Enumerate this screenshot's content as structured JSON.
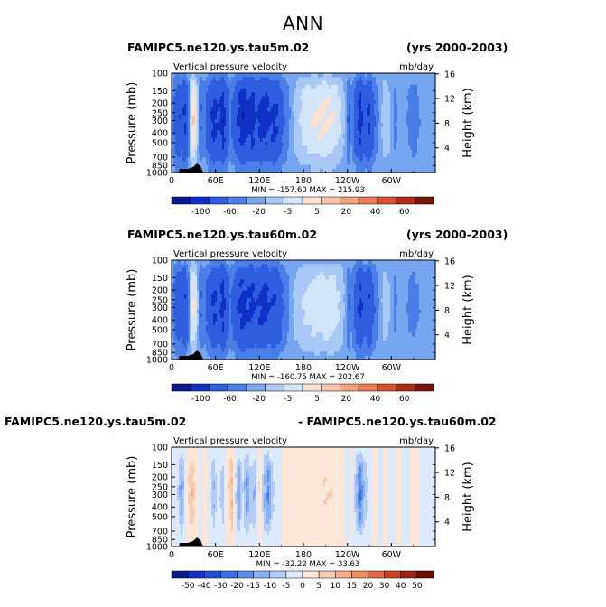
{
  "page": {
    "title": "ANN"
  },
  "panels": [
    {
      "left_label": "FAMIPC5.ne120.ys.tau5m.02",
      "right_label": "(yrs 2000-2003)",
      "min_max": "MIN = -157.60   MAX = 215.93"
    },
    {
      "left_label": "FAMIPC5.ne120.ys.tau60m.02",
      "right_label": "(yrs 2000-2003)",
      "min_max": "MIN = -160.75   MAX = 202.67"
    },
    {
      "left_label": "FAMIPC5.ne120.ys.tau5m.02",
      "right_label": "- FAMIPC5.ne120.ys.tau60m.02",
      "min_max": "MIN = -32.22   MAX = 33.63"
    }
  ],
  "chart_data": [
    {
      "type": "heatmap",
      "title": "FAMIPC5.ne120.ys.tau5m.02",
      "subtitle": "Vertical pressure velocity",
      "units": "mb/day",
      "period": "(yrs 2000-2003)",
      "xlabel": "",
      "ylabel": "Pressure (mb)",
      "y2label": "Height (km)",
      "x_ticks": [
        "0",
        "60E",
        "120E",
        "180",
        "120W",
        "60W"
      ],
      "x_tick_values": [
        0,
        60,
        120,
        180,
        240,
        300
      ],
      "xlim": [
        0,
        360
      ],
      "y_ticks": [
        100,
        150,
        200,
        250,
        300,
        400,
        500,
        700,
        850,
        1000
      ],
      "ylim": [
        1000,
        100
      ],
      "y_scale": "log",
      "y2_ticks": [
        4,
        8,
        12,
        16
      ],
      "min": -157.6,
      "max": 215.93,
      "colorbar_levels": [
        -100,
        -60,
        -20,
        -5,
        5,
        20,
        40,
        60
      ],
      "colorbar_tick_labels": [
        "-100",
        "-60",
        "-20",
        "-5",
        "5",
        "20",
        "40",
        "60"
      ],
      "colors": [
        "#0a1a8c",
        "#1030c8",
        "#2e5ee0",
        "#4a7fe8",
        "#78a5f0",
        "#a8c8f6",
        "#d2e4fa",
        "#fbe2d2",
        "#f8c4a8",
        "#f4a07a",
        "#ec7a54",
        "#d8502e",
        "#b02a14",
        "#7a1208"
      ],
      "profile": [
        {
          "lon": 0,
          "v": 0
        },
        {
          "lon": 5,
          "v": -35
        },
        {
          "lon": 10,
          "v": -60
        },
        {
          "lon": 14,
          "v": -40
        },
        {
          "lon": 18,
          "v": -70
        },
        {
          "lon": 22,
          "v": -30
        },
        {
          "lon": 26,
          "v": 20
        },
        {
          "lon": 29,
          "v": 70
        },
        {
          "lon": 33,
          "v": 40
        },
        {
          "lon": 37,
          "v": -5
        },
        {
          "lon": 41,
          "v": -20
        },
        {
          "lon": 45,
          "v": -10
        },
        {
          "lon": 50,
          "v": -40
        },
        {
          "lon": 58,
          "v": -80
        },
        {
          "lon": 64,
          "v": -55
        },
        {
          "lon": 70,
          "v": -90
        },
        {
          "lon": 75,
          "v": -50
        },
        {
          "lon": 80,
          "v": -15
        },
        {
          "lon": 86,
          "v": -35
        },
        {
          "lon": 92,
          "v": -70
        },
        {
          "lon": 98,
          "v": -95
        },
        {
          "lon": 104,
          "v": -70
        },
        {
          "lon": 110,
          "v": -85
        },
        {
          "lon": 116,
          "v": -55
        },
        {
          "lon": 122,
          "v": -80
        },
        {
          "lon": 128,
          "v": -90
        },
        {
          "lon": 134,
          "v": -60
        },
        {
          "lon": 140,
          "v": -75
        },
        {
          "lon": 146,
          "v": -55
        },
        {
          "lon": 152,
          "v": -25
        },
        {
          "lon": 158,
          "v": -12
        },
        {
          "lon": 165,
          "v": 2
        },
        {
          "lon": 172,
          "v": 15
        },
        {
          "lon": 180,
          "v": 30
        },
        {
          "lon": 190,
          "v": 38
        },
        {
          "lon": 200,
          "v": 45
        },
        {
          "lon": 210,
          "v": 45
        },
        {
          "lon": 220,
          "v": 42
        },
        {
          "lon": 228,
          "v": 28
        },
        {
          "lon": 234,
          "v": 12
        },
        {
          "lon": 238,
          "v": -2
        },
        {
          "lon": 242,
          "v": -30
        },
        {
          "lon": 246,
          "v": -5
        },
        {
          "lon": 252,
          "v": -45
        },
        {
          "lon": 258,
          "v": -80
        },
        {
          "lon": 264,
          "v": -40
        },
        {
          "lon": 270,
          "v": -65
        },
        {
          "lon": 276,
          "v": -25
        },
        {
          "lon": 282,
          "v": -6
        },
        {
          "lon": 290,
          "v": 12
        },
        {
          "lon": 298,
          "v": 8
        },
        {
          "lon": 305,
          "v": -10
        },
        {
          "lon": 312,
          "v": 4
        },
        {
          "lon": 320,
          "v": -4
        },
        {
          "lon": 330,
          "v": -12
        },
        {
          "lon": 340,
          "v": -4
        },
        {
          "lon": 350,
          "v": 3
        },
        {
          "lon": 360,
          "v": 0
        }
      ]
    },
    {
      "type": "heatmap",
      "title": "FAMIPC5.ne120.ys.tau60m.02",
      "subtitle": "Vertical pressure velocity",
      "units": "mb/day",
      "period": "(yrs 2000-2003)",
      "xlabel": "",
      "ylabel": "Pressure (mb)",
      "y2label": "Height (km)",
      "x_ticks": [
        "0",
        "60E",
        "120E",
        "180",
        "120W",
        "60W"
      ],
      "x_tick_values": [
        0,
        60,
        120,
        180,
        240,
        300
      ],
      "xlim": [
        0,
        360
      ],
      "y_ticks": [
        100,
        150,
        200,
        250,
        300,
        400,
        500,
        700,
        850,
        1000
      ],
      "ylim": [
        1000,
        100
      ],
      "y_scale": "log",
      "y2_ticks": [
        4,
        8,
        12,
        16
      ],
      "min": -160.75,
      "max": 202.67,
      "colorbar_levels": [
        -100,
        -60,
        -20,
        -5,
        5,
        20,
        40,
        60
      ],
      "colorbar_tick_labels": [
        "-100",
        "-60",
        "-20",
        "-5",
        "5",
        "20",
        "40",
        "60"
      ],
      "colors": [
        "#0a1a8c",
        "#1030c8",
        "#2e5ee0",
        "#4a7fe8",
        "#78a5f0",
        "#a8c8f6",
        "#d2e4fa",
        "#fbe2d2",
        "#f8c4a8",
        "#f4a07a",
        "#ec7a54",
        "#d8502e",
        "#b02a14",
        "#7a1208"
      ],
      "profile": [
        {
          "lon": 0,
          "v": 0
        },
        {
          "lon": 5,
          "v": -30
        },
        {
          "lon": 10,
          "v": -55
        },
        {
          "lon": 14,
          "v": -35
        },
        {
          "lon": 18,
          "v": -60
        },
        {
          "lon": 22,
          "v": -25
        },
        {
          "lon": 26,
          "v": 15
        },
        {
          "lon": 29,
          "v": 55
        },
        {
          "lon": 33,
          "v": 30
        },
        {
          "lon": 37,
          "v": -5
        },
        {
          "lon": 41,
          "v": -20
        },
        {
          "lon": 45,
          "v": -12
        },
        {
          "lon": 50,
          "v": -35
        },
        {
          "lon": 58,
          "v": -70
        },
        {
          "lon": 64,
          "v": -50
        },
        {
          "lon": 70,
          "v": -80
        },
        {
          "lon": 75,
          "v": -45
        },
        {
          "lon": 80,
          "v": -18
        },
        {
          "lon": 86,
          "v": -35
        },
        {
          "lon": 92,
          "v": -65
        },
        {
          "lon": 98,
          "v": -80
        },
        {
          "lon": 104,
          "v": -60
        },
        {
          "lon": 110,
          "v": -75
        },
        {
          "lon": 116,
          "v": -50
        },
        {
          "lon": 122,
          "v": -70
        },
        {
          "lon": 128,
          "v": -78
        },
        {
          "lon": 134,
          "v": -55
        },
        {
          "lon": 140,
          "v": -60
        },
        {
          "lon": 146,
          "v": -45
        },
        {
          "lon": 152,
          "v": -22
        },
        {
          "lon": 158,
          "v": -10
        },
        {
          "lon": 165,
          "v": 3
        },
        {
          "lon": 172,
          "v": 12
        },
        {
          "lon": 180,
          "v": 22
        },
        {
          "lon": 190,
          "v": 28
        },
        {
          "lon": 200,
          "v": 32
        },
        {
          "lon": 210,
          "v": 34
        },
        {
          "lon": 220,
          "v": 32
        },
        {
          "lon": 228,
          "v": 22
        },
        {
          "lon": 234,
          "v": 10
        },
        {
          "lon": 238,
          "v": -2
        },
        {
          "lon": 242,
          "v": -25
        },
        {
          "lon": 246,
          "v": -5
        },
        {
          "lon": 252,
          "v": -40
        },
        {
          "lon": 258,
          "v": -70
        },
        {
          "lon": 264,
          "v": -35
        },
        {
          "lon": 270,
          "v": -55
        },
        {
          "lon": 276,
          "v": -22
        },
        {
          "lon": 282,
          "v": -6
        },
        {
          "lon": 290,
          "v": 10
        },
        {
          "lon": 298,
          "v": 6
        },
        {
          "lon": 305,
          "v": -8
        },
        {
          "lon": 312,
          "v": 3
        },
        {
          "lon": 320,
          "v": -4
        },
        {
          "lon": 330,
          "v": -10
        },
        {
          "lon": 340,
          "v": -4
        },
        {
          "lon": 350,
          "v": 2
        },
        {
          "lon": 360,
          "v": 0
        }
      ]
    },
    {
      "type": "heatmap",
      "title": "FAMIPC5.ne120.ys.tau5m.02 - FAMIPC5.ne120.ys.tau60m.02",
      "subtitle": "Vertical pressure velocity",
      "units": "mb/day",
      "xlabel": "",
      "ylabel": "Pressure (mb)",
      "y2label": "Height (km)",
      "x_ticks": [
        "0",
        "60E",
        "120E",
        "180",
        "120W",
        "60W"
      ],
      "x_tick_values": [
        0,
        60,
        120,
        180,
        240,
        300
      ],
      "xlim": [
        0,
        360
      ],
      "y_ticks": [
        100,
        150,
        200,
        250,
        300,
        400,
        500,
        700,
        850,
        1000
      ],
      "ylim": [
        1000,
        100
      ],
      "y_scale": "log",
      "y2_ticks": [
        4,
        8,
        12,
        16
      ],
      "min": -32.22,
      "max": 33.63,
      "colorbar_levels": [
        -50,
        -40,
        -30,
        -20,
        -15,
        -10,
        -5,
        0,
        5,
        10,
        15,
        20,
        30,
        40,
        50
      ],
      "colorbar_tick_labels": [
        "-50",
        "-40",
        "-30",
        "-20",
        "-15",
        "-10",
        "-5",
        "0",
        "5",
        "10",
        "15",
        "20",
        "30",
        "40",
        "50"
      ],
      "colors": [
        "#0a1a8c",
        "#1030c8",
        "#2050d8",
        "#3a6ee4",
        "#5a8eec",
        "#88b0f2",
        "#b2ccf6",
        "#dceafb",
        "#fbe6d8",
        "#f8ccb0",
        "#f4ae88",
        "#ee8c62",
        "#e06a40",
        "#c44424",
        "#9a2210",
        "#6e0c06"
      ],
      "profile": [
        {
          "lon": 0,
          "v": 0
        },
        {
          "lon": 8,
          "v": -4
        },
        {
          "lon": 13,
          "v": -14
        },
        {
          "lon": 17,
          "v": -8
        },
        {
          "lon": 22,
          "v": 4
        },
        {
          "lon": 28,
          "v": 10
        },
        {
          "lon": 33,
          "v": 3
        },
        {
          "lon": 40,
          "v": -2
        },
        {
          "lon": 46,
          "v": 2
        },
        {
          "lon": 52,
          "v": -3
        },
        {
          "lon": 58,
          "v": -10
        },
        {
          "lon": 63,
          "v": -3
        },
        {
          "lon": 70,
          "v": -8
        },
        {
          "lon": 76,
          "v": 2
        },
        {
          "lon": 82,
          "v": 12
        },
        {
          "lon": 86,
          "v": -2
        },
        {
          "lon": 92,
          "v": -14
        },
        {
          "lon": 97,
          "v": -4
        },
        {
          "lon": 103,
          "v": -16
        },
        {
          "lon": 108,
          "v": -6
        },
        {
          "lon": 114,
          "v": -12
        },
        {
          "lon": 120,
          "v": 6
        },
        {
          "lon": 126,
          "v": -10
        },
        {
          "lon": 132,
          "v": -18
        },
        {
          "lon": 138,
          "v": -6
        },
        {
          "lon": 145,
          "v": -3
        },
        {
          "lon": 152,
          "v": 2
        },
        {
          "lon": 160,
          "v": 1
        },
        {
          "lon": 170,
          "v": 3
        },
        {
          "lon": 180,
          "v": 4
        },
        {
          "lon": 195,
          "v": 3
        },
        {
          "lon": 210,
          "v": 5
        },
        {
          "lon": 225,
          "v": 4
        },
        {
          "lon": 235,
          "v": 2
        },
        {
          "lon": 240,
          "v": -3
        },
        {
          "lon": 246,
          "v": 3
        },
        {
          "lon": 252,
          "v": -10
        },
        {
          "lon": 258,
          "v": -20
        },
        {
          "lon": 264,
          "v": -8
        },
        {
          "lon": 270,
          "v": -4
        },
        {
          "lon": 276,
          "v": 2
        },
        {
          "lon": 284,
          "v": -2
        },
        {
          "lon": 292,
          "v": 2
        },
        {
          "lon": 300,
          "v": -2
        },
        {
          "lon": 310,
          "v": 1
        },
        {
          "lon": 320,
          "v": -2
        },
        {
          "lon": 330,
          "v": 1
        },
        {
          "lon": 345,
          "v": -1
        },
        {
          "lon": 360,
          "v": 0
        }
      ]
    }
  ]
}
